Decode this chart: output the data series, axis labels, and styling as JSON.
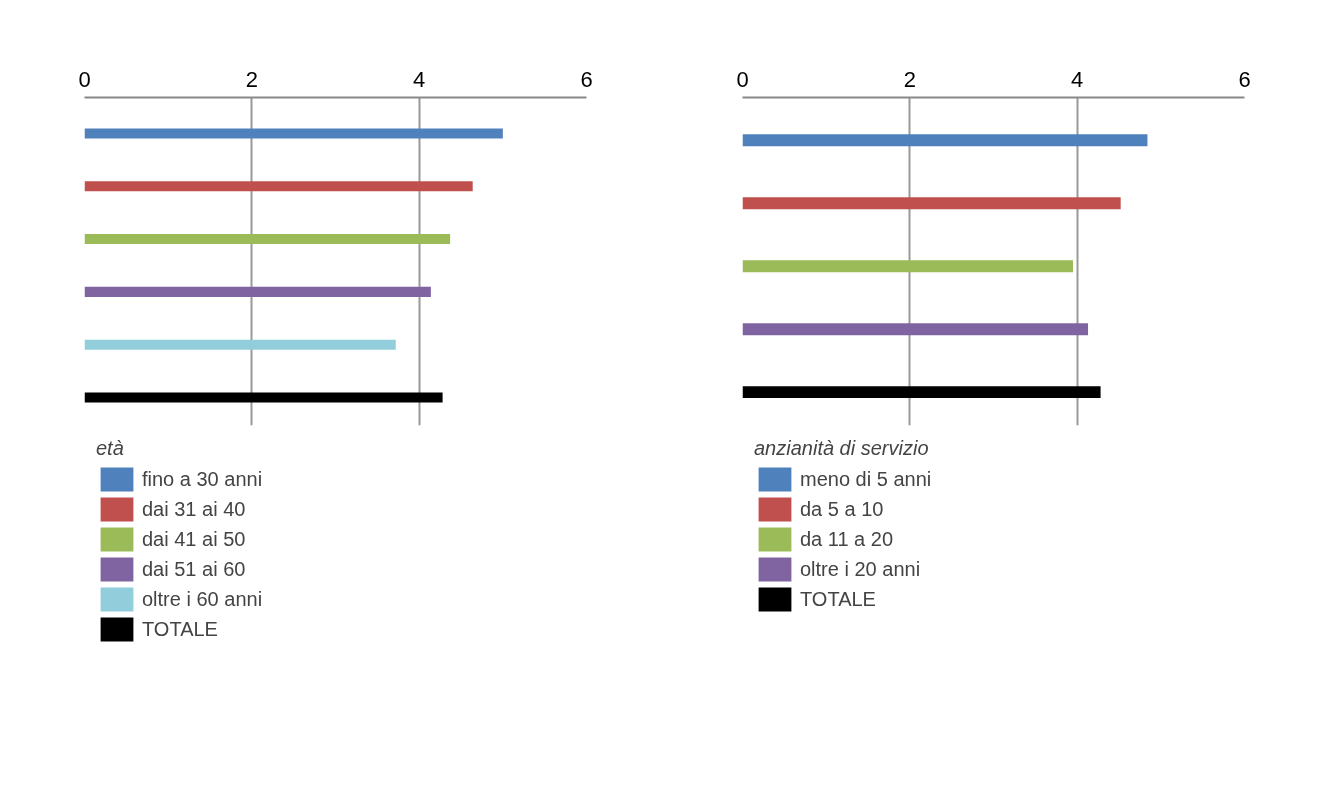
{
  "chart_data": [
    {
      "type": "bar",
      "orientation": "horizontal",
      "legend_title": "età",
      "legend": "bottom",
      "grid": "x",
      "xlim": [
        0,
        6
      ],
      "xticks": [
        0,
        2,
        4,
        6
      ],
      "categories": [
        null
      ],
      "series": [
        {
          "name": "fino a 30 anni",
          "color": "#4f81bd",
          "values": [
            5.0
          ]
        },
        {
          "name": "dai 31 ai 40",
          "color": "#c0504d",
          "values": [
            4.64
          ]
        },
        {
          "name": "dai 41 ai 50",
          "color": "#9bbb59",
          "values": [
            4.37
          ]
        },
        {
          "name": "dai 51 ai 60",
          "color": "#8064a2",
          "values": [
            4.14
          ]
        },
        {
          "name": "oltre i 60 anni",
          "color": "#92cddc",
          "values": [
            3.72
          ]
        },
        {
          "name": "TOTALE",
          "color": "#000000",
          "values": [
            4.28
          ]
        }
      ]
    },
    {
      "type": "bar",
      "orientation": "horizontal",
      "legend_title": "anzianità di servizio",
      "legend": "bottom",
      "grid": "x",
      "xlim": [
        0,
        6
      ],
      "xticks": [
        0,
        2,
        4,
        6
      ],
      "categories": [
        null
      ],
      "series": [
        {
          "name": "meno di 5 anni",
          "color": "#4f81bd",
          "values": [
            4.84
          ]
        },
        {
          "name": "da 5 a 10",
          "color": "#c0504d",
          "values": [
            4.52
          ]
        },
        {
          "name": "da 11 a 20",
          "color": "#9bbb59",
          "values": [
            3.95
          ]
        },
        {
          "name": "oltre i 20 anni",
          "color": "#8064a2",
          "values": [
            4.13
          ]
        },
        {
          "name": "TOTALE",
          "color": "#000000",
          "values": [
            4.28
          ]
        }
      ]
    }
  ]
}
